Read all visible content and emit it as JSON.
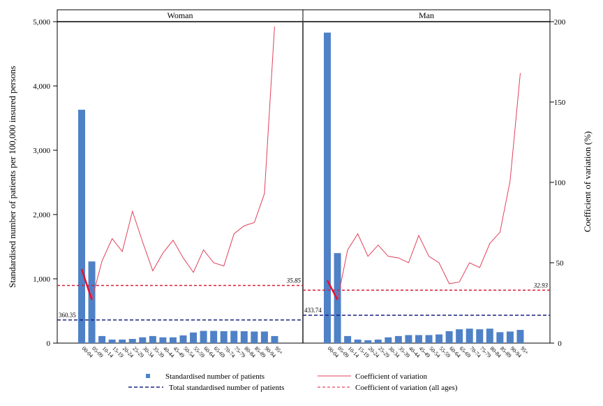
{
  "chart_data": {
    "type": "bar",
    "y_left_label": "Standardised number of patients per 100,000 insured persons",
    "y_right_label": "Coefficient of variation (%)",
    "y_left_range": [
      0,
      5000
    ],
    "y_right_range": [
      0,
      200
    ],
    "y_left_ticks": [
      "0",
      "1,000",
      "2,000",
      "3,000",
      "4,000",
      "5,000"
    ],
    "y_left_tick_values": [
      0,
      1000,
      2000,
      3000,
      4000,
      5000
    ],
    "y_right_ticks": [
      "0",
      "50",
      "100",
      "150",
      "200"
    ],
    "y_right_tick_values": [
      0,
      50,
      100,
      150,
      200
    ],
    "categories": [
      "00-04",
      "05-09",
      "10-14",
      "15-19",
      "20-24",
      "25-29",
      "30-34",
      "35-39",
      "40-44",
      "45-49",
      "50-54",
      "55-59",
      "60-64",
      "65-69",
      "70-74",
      "75-79",
      "80-84",
      "85-89",
      "90-94",
      "95+"
    ],
    "panels": [
      {
        "title": "Woman",
        "patients": [
          3630,
          1270,
          110,
          55,
          55,
          65,
          90,
          110,
          90,
          90,
          120,
          165,
          190,
          190,
          185,
          190,
          185,
          180,
          180,
          110
        ],
        "cv": [
          46,
          27,
          51,
          65,
          57,
          82,
          63,
          45,
          56,
          64,
          53,
          44,
          58,
          50,
          48,
          68,
          73,
          75,
          93,
          197
        ],
        "total_patients": 360.35,
        "total_patients_label": "360.35",
        "cv_all": 35.85,
        "cv_all_label": "35.85"
      },
      {
        "title": "Man",
        "patients": [
          4830,
          1400,
          110,
          55,
          45,
          55,
          90,
          110,
          125,
          125,
          125,
          135,
          185,
          215,
          225,
          215,
          225,
          170,
          180,
          205
        ],
        "cv": [
          39,
          27,
          58,
          68,
          54,
          61,
          54,
          53,
          50,
          67,
          54,
          50,
          37,
          38,
          50,
          47,
          62,
          69,
          101,
          168
        ],
        "total_patients": 433.74,
        "total_patients_label": "433.74",
        "cv_all": 32.93,
        "cv_all_label": "32.93"
      }
    ],
    "legend": [
      {
        "key": "patients",
        "label": "Standardised number of patients"
      },
      {
        "key": "cv",
        "label": "Coefficient of variation"
      },
      {
        "key": "total",
        "label": "Total standardised number of patients"
      },
      {
        "key": "cv_all",
        "label": "Coefficient of variation (all ages)"
      }
    ],
    "colors": {
      "bar": "#4f81c7",
      "cv_line": "#e0405a",
      "cv_all_line": "#d81e3a",
      "total_line": "#1a237e",
      "highlight": "#e8102e"
    },
    "legend_placement": "bottom",
    "grid": false
  }
}
